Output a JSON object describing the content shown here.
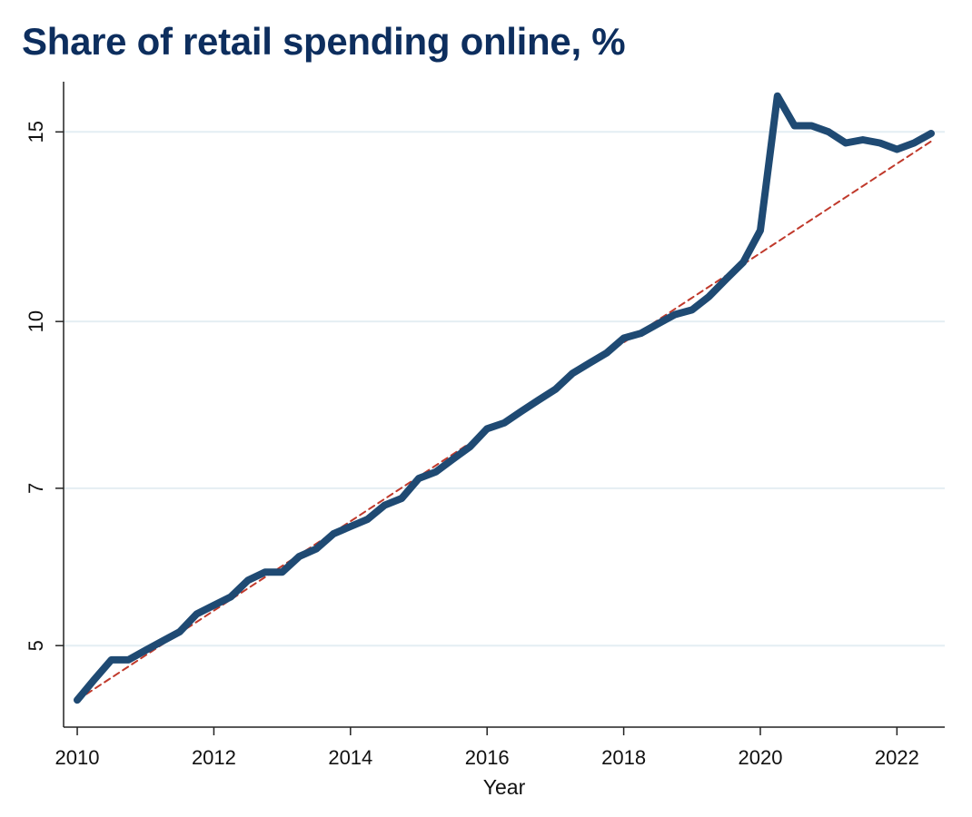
{
  "chart_data": {
    "type": "line",
    "title": "Share of retail spending online, %",
    "xlabel": "Year",
    "ylabel": "",
    "y_scale": "log",
    "xlim": [
      2009.8,
      2022.7
    ],
    "ylim": [
      4.2,
      16.7
    ],
    "x_ticks": [
      2010,
      2012,
      2014,
      2016,
      2018,
      2020,
      2022
    ],
    "y_ticks": [
      5,
      7,
      10,
      15
    ],
    "grid": "horizontal",
    "legend": "none",
    "series": [
      {
        "style": "solid",
        "color": "#1f4a73",
        "x": [
          2010.0,
          2010.25,
          2010.5,
          2010.75,
          2011.0,
          2011.25,
          2011.5,
          2011.75,
          2012.0,
          2012.25,
          2012.5,
          2012.75,
          2013.0,
          2013.25,
          2013.5,
          2013.75,
          2014.0,
          2014.25,
          2014.5,
          2014.75,
          2015.0,
          2015.25,
          2015.5,
          2015.75,
          2016.0,
          2016.25,
          2016.5,
          2016.75,
          2017.0,
          2017.25,
          2017.5,
          2017.75,
          2018.0,
          2018.25,
          2018.5,
          2018.75,
          2019.0,
          2019.25,
          2019.5,
          2019.75,
          2020.0,
          2020.25,
          2020.5,
          2020.75,
          2021.0,
          2021.25,
          2021.5,
          2021.75,
          2022.0,
          2022.25,
          2022.5
        ],
        "values": [
          4.45,
          4.65,
          4.85,
          4.85,
          4.95,
          5.05,
          5.15,
          5.35,
          5.45,
          5.55,
          5.75,
          5.85,
          5.85,
          6.05,
          6.15,
          6.35,
          6.45,
          6.55,
          6.75,
          6.85,
          7.15,
          7.25,
          7.45,
          7.65,
          7.95,
          8.05,
          8.25,
          8.45,
          8.65,
          8.95,
          9.15,
          9.35,
          9.65,
          9.75,
          9.95,
          10.15,
          10.25,
          10.55,
          10.95,
          11.35,
          12.15,
          16.2,
          15.2,
          15.2,
          15.0,
          14.65,
          14.75,
          14.65,
          14.45,
          14.65,
          14.95
        ]
      },
      {
        "style": "dashed",
        "color": "#c0392b",
        "x": [
          2010.0,
          2022.5
        ],
        "values": [
          4.45,
          14.7
        ]
      }
    ]
  }
}
